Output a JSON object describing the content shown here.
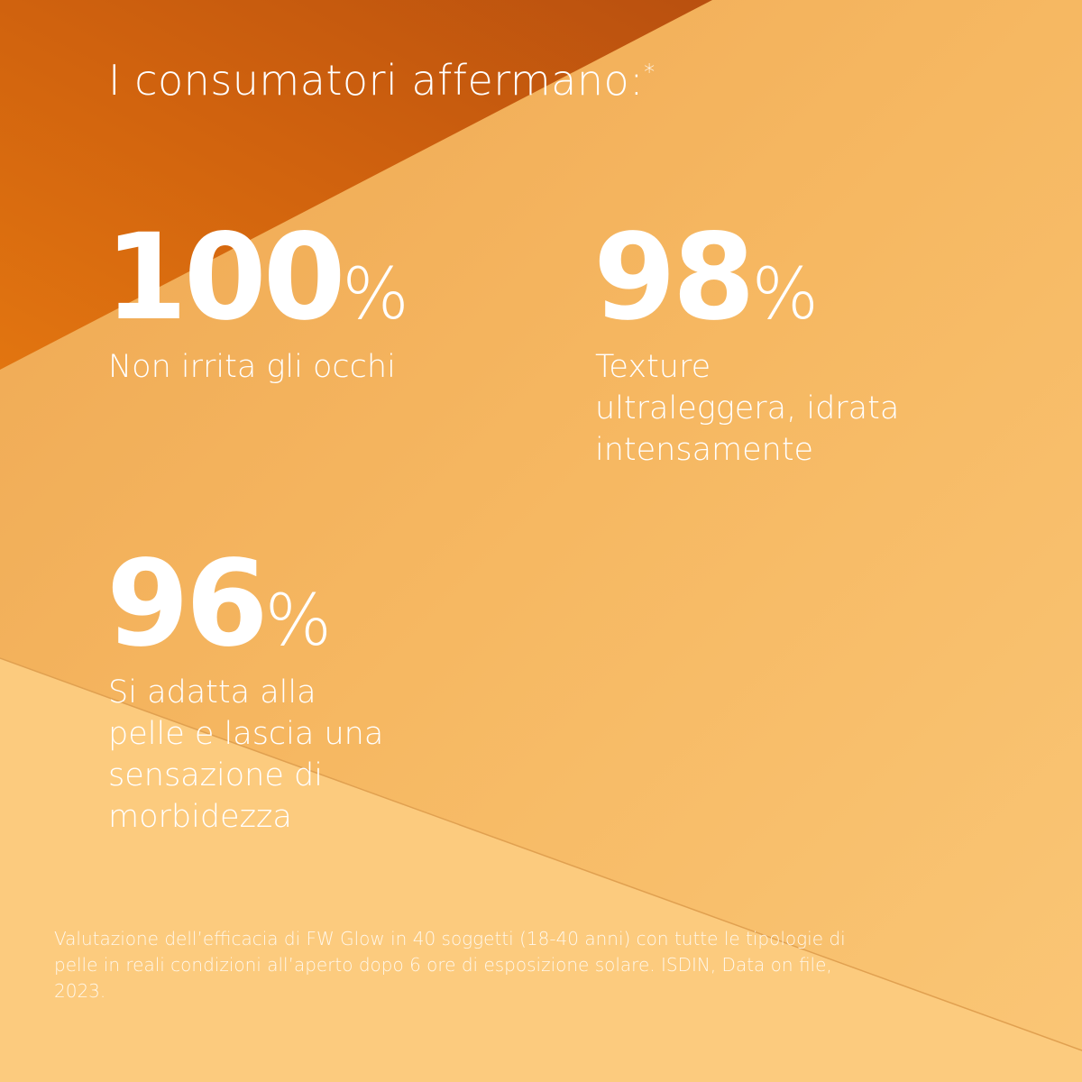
{
  "colors": {
    "dark_orange": "#c9580f",
    "light_orange": "#f4b45e",
    "pale_orange": "#fcca7d",
    "text": "#ffffff"
  },
  "title": {
    "text": "I consumatori affermano:",
    "marker": "*"
  },
  "stats": [
    {
      "value": "100",
      "unit": "%",
      "label": "Non irrita gli occhi"
    },
    {
      "value": "98",
      "unit": "%",
      "label_lines": [
        "Texture",
        "ultraleggera, idrata",
        "intensamente"
      ]
    },
    {
      "value": "96",
      "unit": "%",
      "label_lines": [
        "Si adatta alla",
        "pelle e lascia una",
        "sensazione di",
        "morbidezza"
      ]
    }
  ],
  "footnote": {
    "lines": [
      "Valutazione dell’efficacia di FW Glow in 40 soggetti (18-40 anni) con tutte le tipologie di",
      "pelle in reali condizioni all’aperto dopo 6 ore di esposizione solare. ISDIN, Data on file,",
      "2023."
    ]
  }
}
